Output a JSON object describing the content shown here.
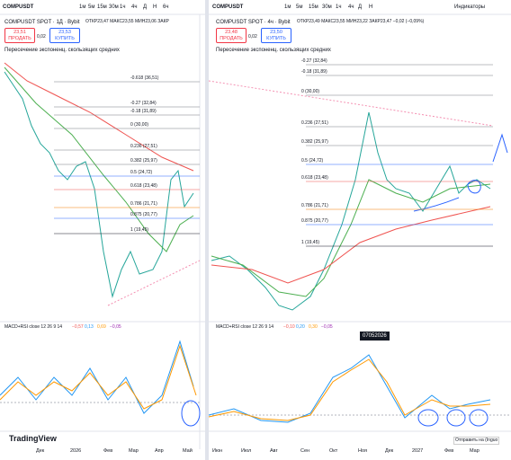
{
  "left": {
    "symbol": "COMPUSDT",
    "timeframes": [
      "1м",
      "5м",
      "15м",
      "30м",
      "1ч",
      "4ч",
      "Д",
      "Н",
      "6ч"
    ],
    "legend_title": "COMPUSDT SPOT · 1Д · Bybit",
    "ohlc": "ОТКР23,47 МАКС23,55 МИН23,06 ЗАКР",
    "sell_price": "23,51",
    "sell_label": "ПРОДАТЬ",
    "spread": "0,02",
    "buy_price": "23,53",
    "buy_label": "КУПИТЬ",
    "indicator": "Пересечение экспоненц. скользящих средних",
    "fib_levels": [
      "-0.618 (36,51)",
      "-0.27 (32,84)",
      "-0.18 (31,89)",
      "0 (30,00)",
      "0.236 (27,51)",
      "0.382 (25,97)",
      "0.5 (24,72)",
      "0.618 (23,48)",
      "0.786 (21,71)",
      "0.875 (20,77)",
      "1 (19,45)"
    ],
    "macd_title": "MACD+RSI close 12 26 9 14",
    "macd_values": [
      "−0,57",
      "0,13",
      "0,69",
      "−0,05"
    ],
    "x_axis": [
      "Дек",
      "2026",
      "Фев",
      "Мар",
      "Апр",
      "Май"
    ],
    "logo": "TradingView"
  },
  "right": {
    "symbol": "COMPUSDT",
    "timeframes": [
      "1м",
      "5м",
      "15м",
      "30м",
      "1ч",
      "4ч",
      "Д",
      "Н"
    ],
    "indicators_button": "Индикаторы",
    "legend_title": "COMPUSDT SPOT · 4ч · Bybit",
    "ohlc": "ОТКР23,49 МАКС23,55 МИН23,22 ЗАКР23,47 −0,02 (−0,09%)",
    "sell_price": "23,48",
    "sell_label": "ПРОДАТЬ",
    "spread": "0,02",
    "buy_price": "23,50",
    "buy_label": "КУПИТЬ",
    "indicator": "Пересечение экспоненц. скользящих средних",
    "fib_levels": [
      "-0.27 (32,84)",
      "-0.18 (31,89)",
      "0 (30,00)",
      "0.236 (27,51)",
      "0.382 (25,97)",
      "0.5 (24,72)",
      "0.618 (23,48)",
      "0.786 (21,71)",
      "0.875 (20,77)",
      "1 (19,45)"
    ],
    "macd_title": "MACD+RSI close 12 26 9 14",
    "macd_values": [
      "−0,10",
      "0,20",
      "0,30",
      "−0,05"
    ],
    "tooltip": "07052026",
    "x_axis": [
      "Июн",
      "Июл",
      "Авг",
      "Сен",
      "Окт",
      "Ноя",
      "Дек",
      "2027",
      "Фев",
      "Мар"
    ],
    "send_button": "Отправить на (Inguo"
  }
}
